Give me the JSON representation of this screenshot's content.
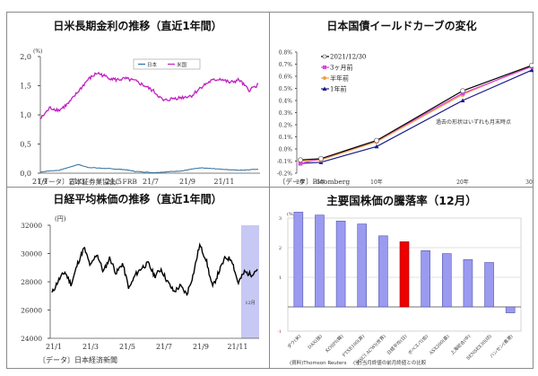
{
  "panels": {
    "tl": {
      "title": "日米長期金利の推移（直近1年間）",
      "unit": "(%)",
      "source": "〔データ〕日本証券業協会、FRB",
      "legend": [
        "日本",
        "米国"
      ]
    },
    "tr": {
      "title": "日本国債イールドカーブの変化",
      "source": "〔データ〕Bloomberg",
      "note": "過去の形状はいずれも月末時点",
      "legend": [
        "2021/12/30",
        "3ヶ月前",
        "半年前",
        "1年前"
      ]
    },
    "bl": {
      "title": "日経平均株価の推移（直近1年間）",
      "unit": "(円)",
      "source": "〔データ〕日本経済新聞",
      "band_label": "12月"
    },
    "br": {
      "title": "主要国株価の騰落率（12月）",
      "unit": "(%)",
      "source1": "(資料)Thomson Reuters",
      "source2": "(注)当月終値の前月終値との比較"
    }
  },
  "colors": {
    "japan": "#2e6f9e",
    "us": "#c020c0",
    "now": "#000000",
    "m3": "#e040e0",
    "m6": "#f0a040",
    "y1": "#1a1a8c",
    "nikkei": "#000000",
    "band": "#c8c8f4",
    "bar": "#9a9af0",
    "bar_highlight": "#ee0000"
  },
  "chart_data": [
    {
      "type": "line",
      "title": "日米長期金利の推移（直近1年間）",
      "ylabel": "(%)",
      "ylim": [
        0.0,
        2.0
      ],
      "yticks": [
        "0.0",
        "0.5",
        "1.0",
        "1.5",
        "2.0"
      ],
      "xticks": [
        "21/1",
        "21/3",
        "21/5",
        "21/7",
        "21/9",
        "21/11"
      ],
      "legend_position": "top-right",
      "series": [
        {
          "name": "日本",
          "values": [
            0.02,
            0.04,
            0.05,
            0.1,
            0.15,
            0.1,
            0.09,
            0.08,
            0.07,
            0.06,
            0.03,
            0.02,
            0.01,
            0.02,
            0.03,
            0.04,
            0.07,
            0.09,
            0.08,
            0.07,
            0.06,
            0.05,
            0.06,
            0.07
          ]
        },
        {
          "name": "米国",
          "values": [
            0.93,
            1.12,
            1.08,
            1.2,
            1.4,
            1.6,
            1.72,
            1.65,
            1.6,
            1.62,
            1.58,
            1.5,
            1.4,
            1.24,
            1.28,
            1.3,
            1.33,
            1.48,
            1.58,
            1.62,
            1.55,
            1.6,
            1.42,
            1.52
          ]
        }
      ]
    },
    {
      "type": "line",
      "title": "日本国債イールドカーブの変化",
      "categories": [
        "2年",
        "5年",
        "10年",
        "20年",
        "30年"
      ],
      "ylim": [
        -0.2,
        0.8
      ],
      "yticks": [
        "-0.2%",
        "-0.1%",
        "0.0%",
        "0.1%",
        "0.2%",
        "0.3%",
        "0.4%",
        "0.5%",
        "0.6%",
        "0.7%",
        "0.8%"
      ],
      "series": [
        {
          "name": "2021/12/30",
          "values": [
            -0.09,
            -0.08,
            0.07,
            0.48,
            0.69
          ]
        },
        {
          "name": "3ヶ月前",
          "values": [
            -0.12,
            -0.08,
            0.07,
            0.46,
            0.68
          ]
        },
        {
          "name": "半年前",
          "values": [
            -0.1,
            -0.09,
            0.06,
            0.45,
            0.69
          ]
        },
        {
          "name": "1年前",
          "values": [
            -0.12,
            -0.11,
            0.02,
            0.4,
            0.65
          ]
        }
      ],
      "annotations": [
        "過去の形状はいずれも月末時点"
      ]
    },
    {
      "type": "line",
      "title": "日経平均株価の推移（直近1年間）",
      "ylabel": "(円)",
      "ylim": [
        24000,
        32000
      ],
      "yticks": [
        "24000",
        "26000",
        "28000",
        "30000",
        "32000"
      ],
      "xticks": [
        "21/1",
        "21/3",
        "21/5",
        "21/7",
        "21/9",
        "21/11"
      ],
      "series": [
        {
          "name": "日経平均",
          "values": [
            27200,
            28100,
            28700,
            27800,
            29300,
            30400,
            29100,
            30000,
            28700,
            29700,
            28600,
            29300,
            27500,
            28500,
            29000,
            29300,
            28400,
            28900,
            28000,
            27300,
            27700,
            27100,
            28500,
            30600,
            29600,
            27600,
            28700,
            29700,
            29600,
            27900,
            28700,
            28500,
            28900
          ]
        }
      ],
      "annotations": [
        "12月"
      ]
    },
    {
      "type": "bar",
      "title": "主要国株価の騰落率（12月）",
      "ylabel": "(%)",
      "ylim": [
        -1,
        4
      ],
      "yticks": [
        "-1",
        "1",
        "2",
        "3"
      ],
      "categories": [
        "ダウ(米)",
        "DAX(独)",
        "KOSPI(韓)",
        "FTSE100(英)",
        "MSCI ACWI(世界)",
        "日経平均(日)",
        "ボベスパ(伯)",
        "ASX200(豪)",
        "上海総合(中)",
        "SENSEX30(印)",
        "ハンセン(香港)"
      ],
      "values": [
        3.2,
        3.1,
        2.9,
        2.8,
        2.4,
        2.2,
        1.9,
        1.8,
        1.6,
        1.5,
        -0.2
      ],
      "highlight": "日経平均(日)"
    }
  ]
}
